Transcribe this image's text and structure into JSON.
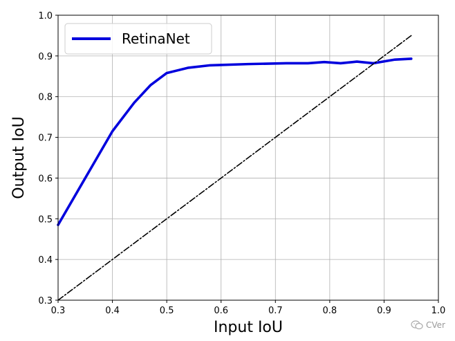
{
  "chart_data": {
    "type": "line",
    "xlabel": "Input IoU",
    "ylabel": "Output IoU",
    "xlim": [
      0.3,
      1.0
    ],
    "ylim": [
      0.3,
      1.0
    ],
    "x_ticks": [
      "0.3",
      "0.4",
      "0.5",
      "0.6",
      "0.7",
      "0.8",
      "0.9",
      "1.0"
    ],
    "y_ticks": [
      "0.3",
      "0.4",
      "0.5",
      "0.6",
      "0.7",
      "0.8",
      "0.9",
      "1.0"
    ],
    "grid": true,
    "legend_position": "top-left",
    "series": [
      {
        "name": "RetinaNet",
        "color": "#0000dd",
        "style": "solid",
        "x": [
          0.3,
          0.35,
          0.4,
          0.44,
          0.47,
          0.5,
          0.54,
          0.58,
          0.65,
          0.72,
          0.76,
          0.79,
          0.82,
          0.85,
          0.88,
          0.92,
          0.95
        ],
        "y": [
          0.485,
          0.6,
          0.715,
          0.785,
          0.828,
          0.858,
          0.871,
          0.877,
          0.88,
          0.882,
          0.882,
          0.885,
          0.882,
          0.886,
          0.882,
          0.891,
          0.893
        ]
      },
      {
        "name": "",
        "color": "#000000",
        "style": "dashdot",
        "x": [
          0.3,
          0.95
        ],
        "y": [
          0.3,
          0.95
        ]
      }
    ]
  },
  "watermark": {
    "text": "CVer",
    "icon": "wechat-icon"
  }
}
